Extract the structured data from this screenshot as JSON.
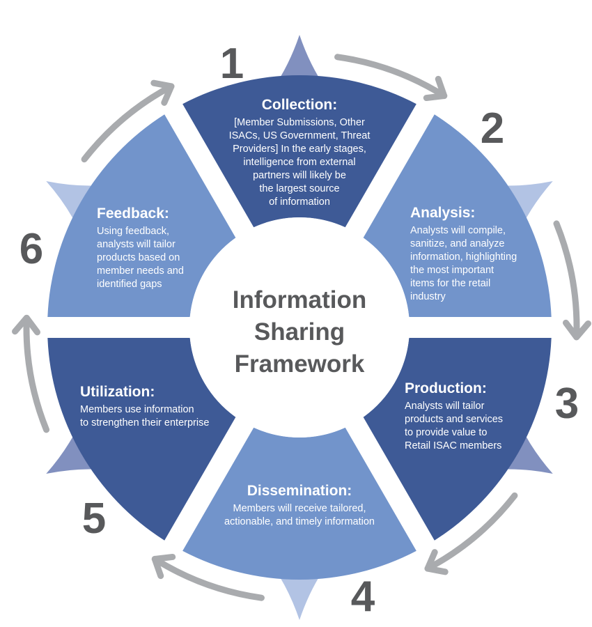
{
  "center": {
    "lines": [
      "Information",
      "Sharing",
      "Framework"
    ]
  },
  "steps": [
    {
      "number": "1",
      "title": "Collection:",
      "body": [
        "[Member Submissions, Other",
        "ISACs, US Government, Threat",
        "Providers] In the early stages,",
        "intelligence from external",
        "partners will likely be",
        "the largest source",
        "of information"
      ],
      "color": "#3e5a96",
      "tip_color": "#8190bf"
    },
    {
      "number": "2",
      "title": "Analysis:",
      "body": [
        "Analysts will compile,",
        "sanitize, and analyze",
        "information, highlighting",
        "the most important",
        "items for the retail",
        "industry"
      ],
      "color": "#7294cb",
      "tip_color": "#b2c3e4"
    },
    {
      "number": "3",
      "title": "Production:",
      "body": [
        "Analysts will tailor",
        "products and services",
        "to provide value to",
        "Retail ISAC members"
      ],
      "color": "#3e5a96",
      "tip_color": "#8190bf"
    },
    {
      "number": "4",
      "title": "Dissemination:",
      "body": [
        "Members will receive tailored,",
        "actionable, and timely information"
      ],
      "color": "#7294cb",
      "tip_color": "#b2c3e4"
    },
    {
      "number": "5",
      "title": "Utilization:",
      "body": [
        "Members use information",
        "to strengthen their enterprise"
      ],
      "color": "#3e5a96",
      "tip_color": "#8190bf"
    },
    {
      "number": "6",
      "title": "Feedback:",
      "body": [
        "Using feedback,",
        "analysts will tailor",
        "products based on",
        "member needs and",
        "identified gaps"
      ],
      "color": "#7294cb",
      "tip_color": "#b2c3e4"
    }
  ],
  "colors": {
    "arrow": "#a9abae",
    "number": "#58595b",
    "center_text": "#58595b",
    "segment_text": "#ffffff"
  }
}
